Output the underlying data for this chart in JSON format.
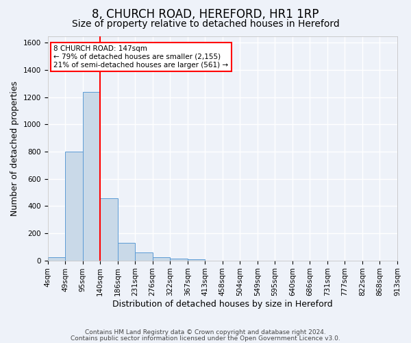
{
  "title1": "8, CHURCH ROAD, HEREFORD, HR1 1RP",
  "title2": "Size of property relative to detached houses in Hereford",
  "xlabel": "Distribution of detached houses by size in Hereford",
  "ylabel": "Number of detached properties",
  "bin_labels": [
    "4sqm",
    "49sqm",
    "95sqm",
    "140sqm",
    "186sqm",
    "231sqm",
    "276sqm",
    "322sqm",
    "367sqm",
    "413sqm",
    "458sqm",
    "504sqm",
    "549sqm",
    "595sqm",
    "640sqm",
    "686sqm",
    "731sqm",
    "777sqm",
    "822sqm",
    "868sqm",
    "913sqm"
  ],
  "bar_values": [
    25,
    800,
    1240,
    455,
    130,
    60,
    25,
    15,
    10,
    0,
    0,
    0,
    0,
    0,
    0,
    0,
    0,
    0,
    0,
    0
  ],
  "bar_color": "#c9d9e8",
  "bar_edge_color": "#5b9bd5",
  "ylim": [
    0,
    1650
  ],
  "yticks": [
    0,
    200,
    400,
    600,
    800,
    1000,
    1200,
    1400,
    1600
  ],
  "red_line_x": 3.0,
  "annotation_line1": "8 CHURCH ROAD: 147sqm",
  "annotation_line2": "← 79% of detached houses are smaller (2,155)",
  "annotation_line3": "21% of semi-detached houses are larger (561) →",
  "footer1": "Contains HM Land Registry data © Crown copyright and database right 2024.",
  "footer2": "Contains public sector information licensed under the Open Government Licence v3.0.",
  "bg_color": "#eef2f9",
  "grid_color": "#ffffff",
  "title1_fontsize": 12,
  "title2_fontsize": 10,
  "xlabel_fontsize": 9,
  "ylabel_fontsize": 9,
  "tick_fontsize": 7.5,
  "footer_fontsize": 6.5
}
